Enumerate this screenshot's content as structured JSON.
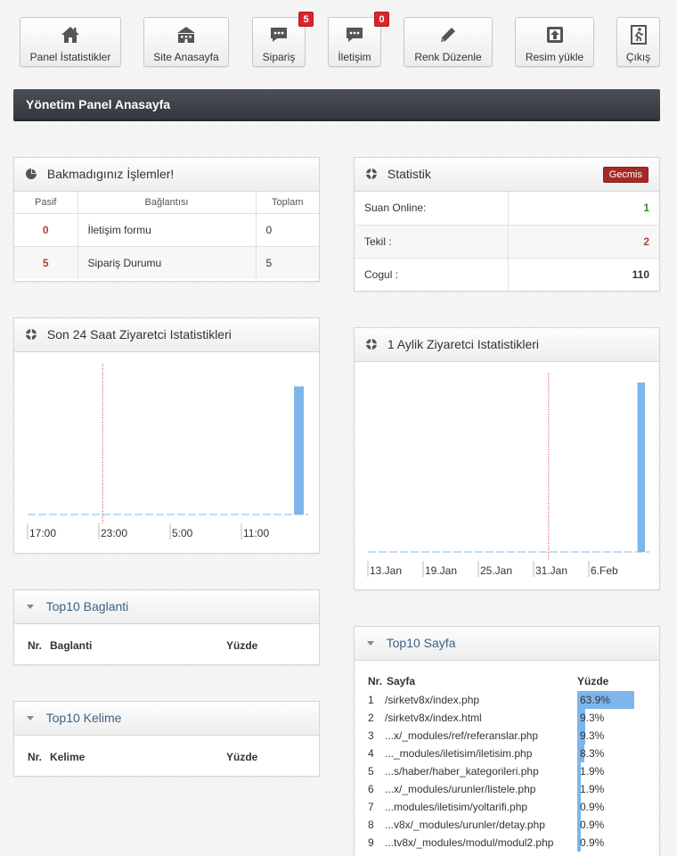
{
  "toolbar": {
    "buttons": [
      {
        "label": "Panel İstatistikler",
        "icon": "home-icon"
      },
      {
        "label": "Site Anasayfa",
        "icon": "building-icon"
      },
      {
        "label": "Sipariş",
        "icon": "chat-icon",
        "badge": "5"
      },
      {
        "label": "İletişim",
        "icon": "chat-icon",
        "badge": "0"
      },
      {
        "label": "Renk Düzenle",
        "icon": "pencil-icon"
      },
      {
        "label": "Resim yükle",
        "icon": "upload-icon"
      },
      {
        "label": "Çıkış",
        "icon": "exit-icon"
      }
    ]
  },
  "page_title": "Yönetim Panel Anasayfa",
  "pending": {
    "title": "Bakmadıgınız İşlemler!",
    "columns": [
      "Pasif",
      "Bağlantısı",
      "Toplam"
    ],
    "rows": [
      {
        "pasif": "0",
        "link": "İletişim formu",
        "total": "0"
      },
      {
        "pasif": "5",
        "link": "Sipariş Durumu",
        "total": "5"
      }
    ]
  },
  "statistik": {
    "title": "Statistik",
    "history_button": "Gecmis",
    "rows": [
      {
        "label": "Suan Online:",
        "value": "1",
        "color": "#3c8a2e"
      },
      {
        "label": "Tekil :",
        "value": "2",
        "color": "#b0403b"
      },
      {
        "label": "Cogul :",
        "value": "110",
        "color": "#333333"
      }
    ]
  },
  "chart_24h": {
    "title": "Son 24 Saat Ziyaretci Istatistikleri"
  },
  "chart_month": {
    "title": "1 Aylik Ziyaretci Istatistikleri"
  },
  "chart_data": [
    {
      "type": "bar",
      "x_ticks": [
        "17:00",
        "23:00",
        "5:00",
        "11:00"
      ],
      "ylim": [
        0,
        1
      ],
      "values": [
        0,
        0,
        0,
        0,
        0,
        0,
        0,
        0,
        0,
        0,
        0,
        0,
        0,
        0,
        0,
        0,
        0,
        0,
        0,
        0,
        0,
        0,
        0,
        0.85
      ],
      "marker_category": 6,
      "bar_color": "#7eb6ec",
      "grid": false
    },
    {
      "type": "bar",
      "x_ticks": [
        "13.Jan",
        "19.Jan",
        "25.Jan",
        "31.Jan",
        "6.Feb"
      ],
      "ylim": [
        0,
        1
      ],
      "values": [
        0,
        0,
        0,
        0,
        0,
        0,
        0,
        0,
        0,
        0,
        0,
        0,
        0,
        0,
        0,
        0,
        0,
        0,
        0,
        0,
        0,
        0,
        0,
        0,
        0,
        0,
        0,
        0,
        0,
        0.95
      ],
      "marker_category": 19,
      "bar_color": "#7eb6ec",
      "grid": false
    }
  ],
  "top_links": {
    "title": "Top10 Baglanti",
    "col_nr": "Nr.",
    "col_link": "Baglanti",
    "col_pct": "Yüzde"
  },
  "top_keywords": {
    "title": "Top10 Kelime",
    "col_nr": "Nr.",
    "col_word": "Kelime",
    "col_pct": "Yüzde"
  },
  "top_pages": {
    "title": "Top10 Sayfa",
    "col_nr": "Nr.",
    "col_page": "Sayfa",
    "col_pct": "Yüzde",
    "rows": [
      {
        "nr": "1",
        "page": "/sirketv8x/index.php",
        "pct": "63.9%",
        "value": 63.9
      },
      {
        "nr": "2",
        "page": "/sirketv8x/index.html",
        "pct": "9.3%",
        "value": 9.3
      },
      {
        "nr": "3",
        "page": "...x/_modules/ref/referanslar.php",
        "pct": "9.3%",
        "value": 9.3
      },
      {
        "nr": "4",
        "page": "..._modules/iletisim/iletisim.php",
        "pct": "8.3%",
        "value": 8.3
      },
      {
        "nr": "5",
        "page": "...s/haber/haber_kategorileri.php",
        "pct": "1.9%",
        "value": 1.9
      },
      {
        "nr": "6",
        "page": "...x/_modules/urunler/listele.php",
        "pct": "1.9%",
        "value": 1.9
      },
      {
        "nr": "7",
        "page": "...modules/iletisim/yoltarifi.php",
        "pct": "0.9%",
        "value": 0.9
      },
      {
        "nr": "8",
        "page": "...v8x/_modules/urunler/detay.php",
        "pct": "0.9%",
        "value": 0.9
      },
      {
        "nr": "9",
        "page": "...tv8x/_modules/modul/modul2.php",
        "pct": "0.9%",
        "value": 0.9
      }
    ]
  }
}
